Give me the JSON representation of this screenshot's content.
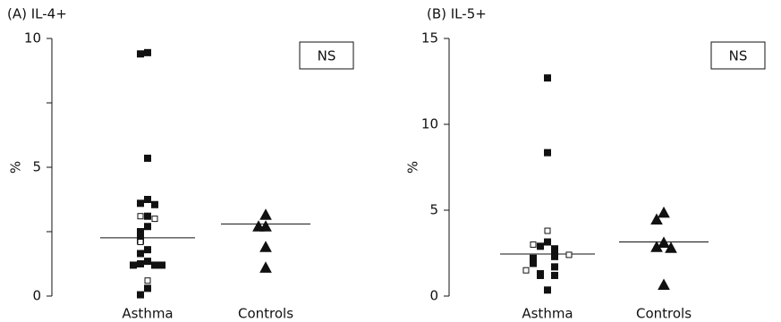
{
  "chart_data": [
    {
      "type": "strip",
      "title": "(A) IL-4+",
      "y_label": "%",
      "annotation": "NS",
      "categories": [
        "Asthma",
        "Controls"
      ],
      "ylim": [
        0,
        10
      ],
      "yticks": [
        0,
        5,
        10
      ],
      "minor_yticks": [
        2.5,
        7.5
      ],
      "series": [
        {
          "category": 0,
          "marker": "square",
          "filled": true,
          "color": "#111111",
          "values": [
            9.45,
            9.4,
            5.35,
            3.75,
            3.6,
            3.55,
            3.1,
            2.7,
            2.5,
            2.4,
            2.15,
            1.8,
            1.65,
            1.35,
            1.25,
            1.2,
            1.2,
            1.2,
            0.3,
            0.05
          ]
        },
        {
          "category": 0,
          "marker": "square",
          "filled": false,
          "color": "#111111",
          "values": [
            3.1,
            3.0,
            2.1,
            0.6
          ]
        },
        {
          "category": 1,
          "marker": "triangle",
          "filled": true,
          "color": "#111111",
          "values": [
            3.15,
            2.7,
            2.7,
            1.9,
            1.1
          ]
        }
      ],
      "medians": [
        2.26,
        2.8
      ]
    },
    {
      "type": "strip",
      "title": "(B) IL-5+",
      "y_label": "%",
      "annotation": "NS",
      "categories": [
        "Asthma",
        "Controls"
      ],
      "ylim": [
        0,
        15
      ],
      "yticks": [
        0,
        5,
        10,
        15
      ],
      "minor_yticks": [],
      "series": [
        {
          "category": 0,
          "marker": "square",
          "filled": true,
          "color": "#111111",
          "values": [
            12.7,
            8.35,
            3.15,
            2.9,
            2.75,
            2.5,
            2.4,
            2.3,
            2.2,
            2.0,
            1.9,
            1.7,
            1.3,
            1.2,
            1.2,
            0.35
          ]
        },
        {
          "category": 0,
          "marker": "square",
          "filled": false,
          "color": "#111111",
          "values": [
            3.8,
            3.0,
            2.4,
            1.5
          ]
        },
        {
          "category": 1,
          "marker": "triangle",
          "filled": true,
          "color": "#111111",
          "values": [
            4.85,
            4.45,
            3.1,
            2.85,
            2.8,
            0.65
          ]
        }
      ],
      "medians": [
        2.45,
        3.15
      ]
    }
  ]
}
